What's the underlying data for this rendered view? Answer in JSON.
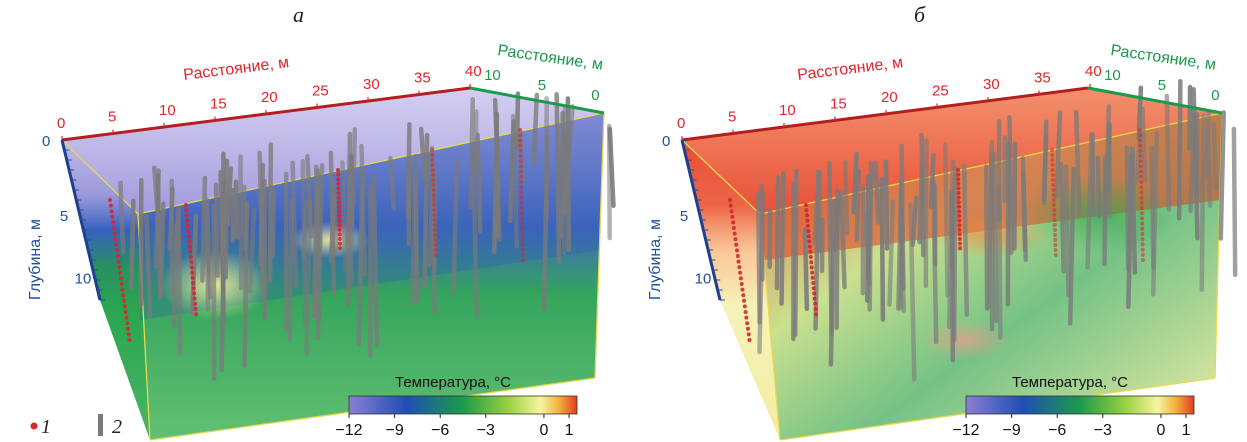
{
  "panels": [
    {
      "id": "a",
      "letter": "а",
      "mode": "cold",
      "axis_distance_label": "Расстояние, м",
      "axis_width_label": "Расстояние, м",
      "axis_depth_label": "Глубина, м",
      "distance_ticks": [
        "0",
        "5",
        "10",
        "15",
        "20",
        "25",
        "30",
        "35",
        "40"
      ],
      "width_ticks": [
        "10",
        "5",
        "0"
      ],
      "depth_ticks": [
        "0",
        "5",
        "10"
      ],
      "colorbar_title": "Температура, °C",
      "colorbar_ticks": [
        "−12",
        "−9",
        "−6",
        "−3",
        "0",
        "1"
      ]
    },
    {
      "id": "b",
      "letter": "б",
      "mode": "warm",
      "axis_distance_label": "Расстояние, м",
      "axis_width_label": "Расстояние, м",
      "axis_depth_label": "Глубина, м",
      "distance_ticks": [
        "0",
        "5",
        "10",
        "15",
        "20",
        "25",
        "30",
        "35",
        "40"
      ],
      "width_ticks": [
        "10",
        "5",
        "0"
      ],
      "depth_ticks": [
        "0",
        "5",
        "10"
      ],
      "colorbar_title": "Температура, °C",
      "colorbar_ticks": [
        "−12",
        "−9",
        "−6",
        "−3",
        "0",
        "1"
      ]
    }
  ],
  "legend": {
    "item1": "1",
    "item2": "2"
  },
  "colors": {
    "distance_axis": "#e3242b",
    "width_axis": "#1a9a4a",
    "depth_axis": "#1f4e9c",
    "box_edge": "#e8d84a",
    "pile": "#7a7a7a",
    "sensor": "#d7262c"
  },
  "colorscale": [
    {
      "value": -12,
      "color": "#8a7fd4"
    },
    {
      "value": -9,
      "color": "#1f4eb4"
    },
    {
      "value": -6,
      "color": "#1c9a4a"
    },
    {
      "value": -3,
      "color": "#9ad140"
    },
    {
      "value": 0,
      "color": "#f5f5a0"
    },
    {
      "value": 0.5,
      "color": "#f2b23c"
    },
    {
      "value": 1,
      "color": "#e53b1f"
    }
  ]
}
